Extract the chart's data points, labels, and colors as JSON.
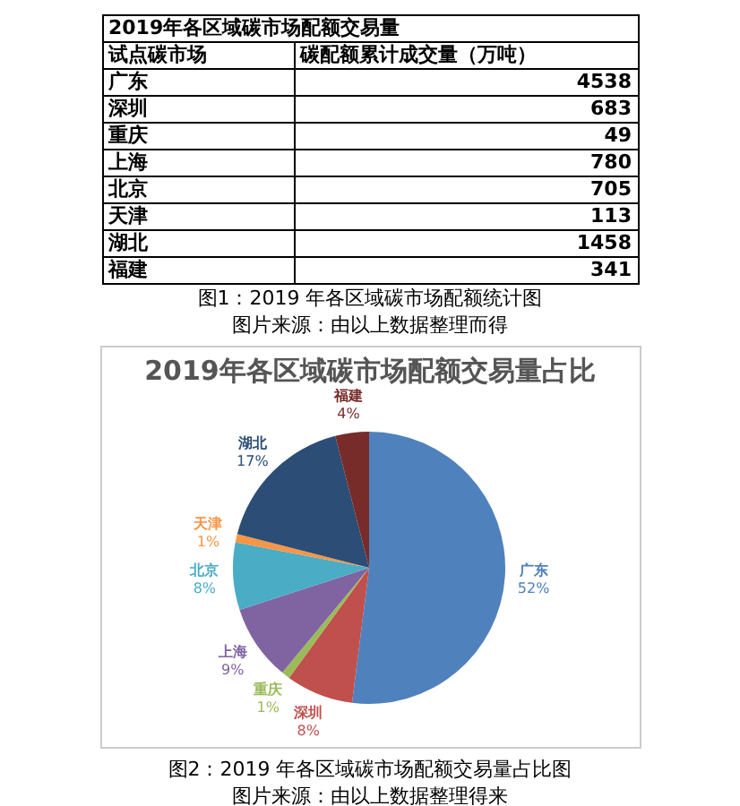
{
  "chart_data": [
    {
      "type": "other",
      "title": "2019年各区域碳市场配额交易量",
      "categories": [
        "广东",
        "深圳",
        "重庆",
        "上海",
        "北京",
        "天津",
        "湖北",
        "福建"
      ],
      "values": [
        4538,
        683,
        49,
        780,
        705,
        113,
        1458,
        341
      ],
      "data_labels": true,
      "annotations": [
        "试点碳市场",
        "碳配额累计成交量（万吨）",
        "图1：2019 年各区域碳市场配额统计图",
        "图片来源：由以上数据整理而得"
      ]
    },
    {
      "type": "pie",
      "title": "2019年各区域碳市场配额交易量占比",
      "categories": [
        "广东",
        "深圳",
        "重庆",
        "上海",
        "北京",
        "天津",
        "湖北",
        "福建"
      ],
      "values": [
        52,
        8,
        1,
        9,
        8,
        1,
        17,
        4
      ],
      "colors": [
        "#4f81bd",
        "#c0504d",
        "#9bbb59",
        "#8064a2",
        "#4bacc6",
        "#f79646",
        "#2c4d75",
        "#772c2a"
      ],
      "value_labels": [
        "52%",
        "8%",
        "1%",
        "9%",
        "8%",
        "1%",
        "17%",
        "4%"
      ],
      "annotations": [
        "图2：2019 年各区域碳市场配额交易量占比图",
        "图片来源：由以上数据整理得来"
      ]
    }
  ]
}
